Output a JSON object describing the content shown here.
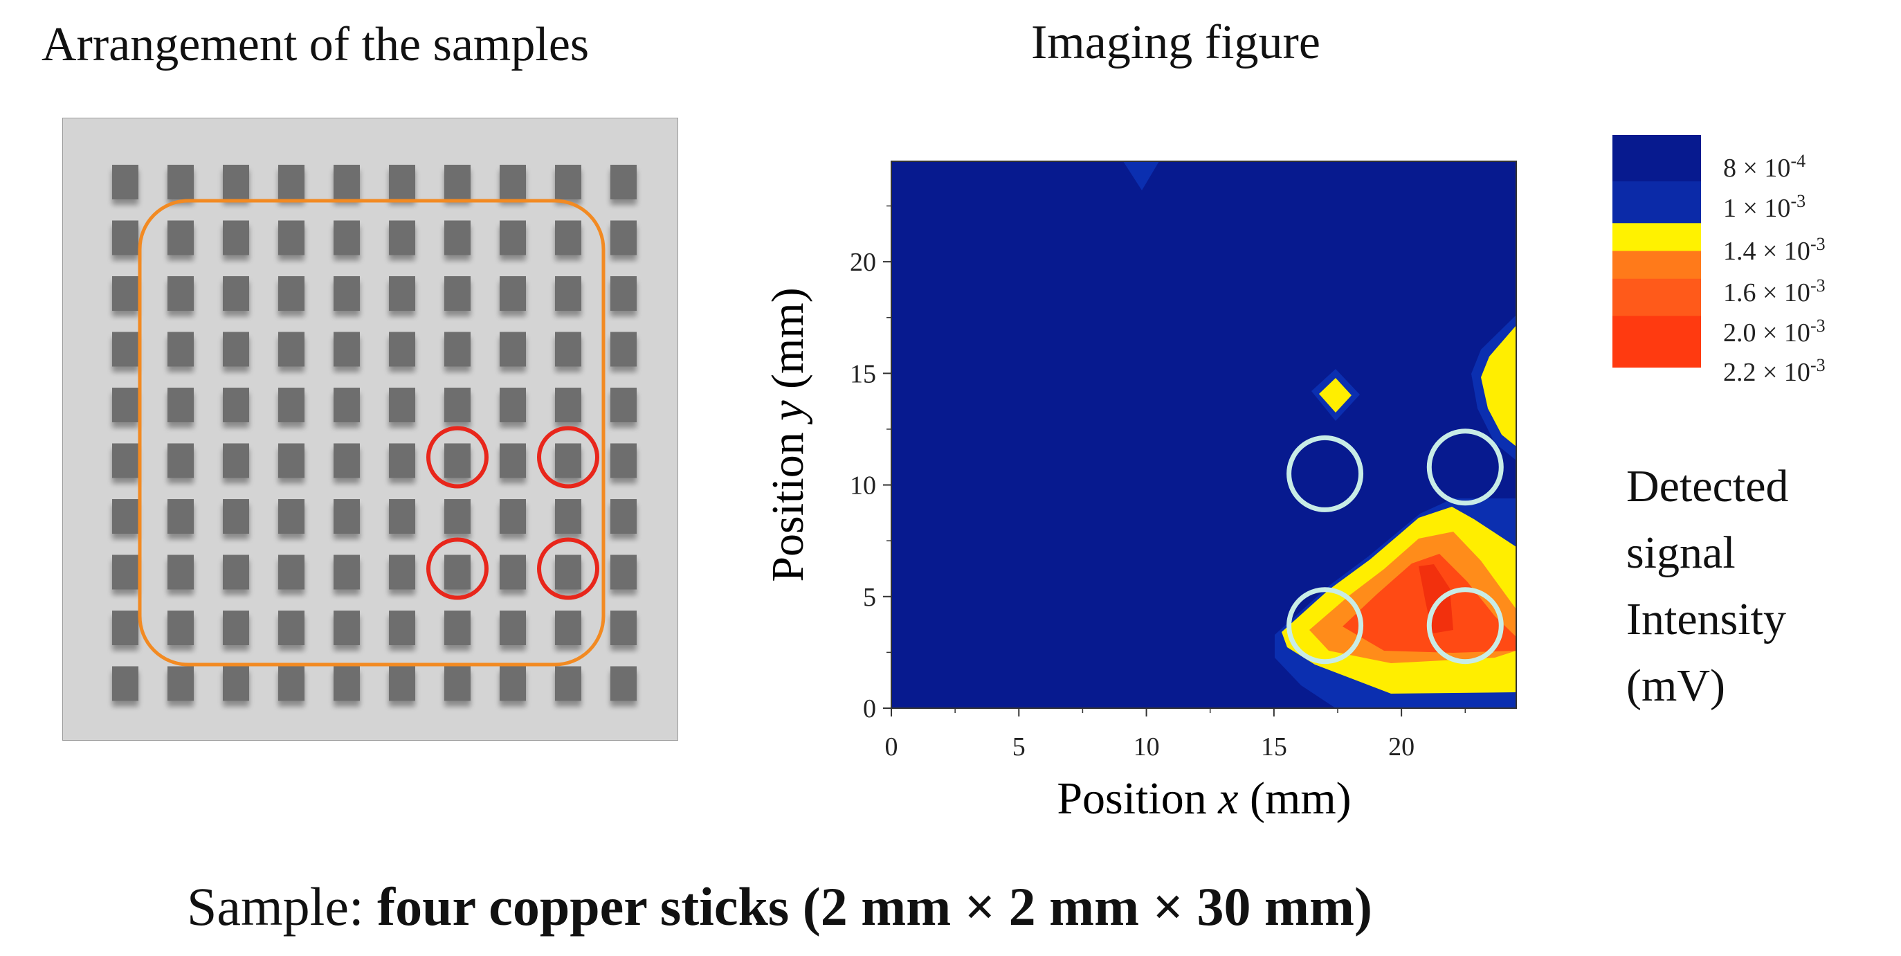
{
  "left_title": "Arrangement of the samples",
  "right_title": "Imaging figure",
  "arrangement": {
    "grid_rows": 10,
    "grid_cols": 10,
    "highlighted_cells": [
      [
        5,
        6
      ],
      [
        5,
        8
      ],
      [
        7,
        6
      ],
      [
        7,
        8
      ]
    ],
    "plate_color": "#d4d4d4",
    "stick_color": "#6e6e6e",
    "region_color": "#f28a22",
    "marker_color": "#e8261b"
  },
  "imaging": {
    "x_label_prefix": "Position ",
    "x_label_var": "x",
    "x_label_unit": " (mm)",
    "y_label_prefix": "Position ",
    "y_label_var": "y",
    "y_label_unit": " (mm)",
    "x_ticks": [
      "0",
      "5",
      "10",
      "15",
      "20"
    ],
    "y_ticks": [
      "0",
      "5",
      "10",
      "15",
      "20"
    ],
    "x_range": [
      0,
      24.5
    ],
    "y_range": [
      0,
      24.5
    ],
    "sample_markers": [
      [
        17,
        10.5
      ],
      [
        22.5,
        10.8
      ],
      [
        17,
        3.7
      ],
      [
        22.5,
        3.7
      ]
    ],
    "marker_color": "#c8ece6"
  },
  "legend": {
    "title_lines": [
      "Detected",
      "signal",
      "Intensity",
      "(mV)"
    ],
    "levels": [
      {
        "label": "8 × 10",
        "exp": "-4",
        "color": "#0a1a8a"
      },
      {
        "label": "1 × 10",
        "exp": "-3",
        "color": "#0b2aa8"
      },
      {
        "label": "1.4 × 10",
        "exp": "-3",
        "color": "#fff200"
      },
      {
        "label": "1.6 × 10",
        "exp": "-3",
        "color": "#ff7a1a"
      },
      {
        "label": "2.0 × 10",
        "exp": "-3",
        "color": "#ff4a1a"
      },
      {
        "label": "2.2 × 10",
        "exp": "-3",
        "color": "#ff2a10"
      }
    ]
  },
  "colors": {
    "background_field": "#071a8f",
    "low_band": "#0b2fb0",
    "yellow": "#ffee00",
    "orange": "#ff8c1a",
    "red_orange": "#ff4a14",
    "red": "#f2300d"
  },
  "caption": {
    "prefix": "Sample: ",
    "bold": "four copper sticks (2 mm × 2 mm × 30 mm)"
  }
}
